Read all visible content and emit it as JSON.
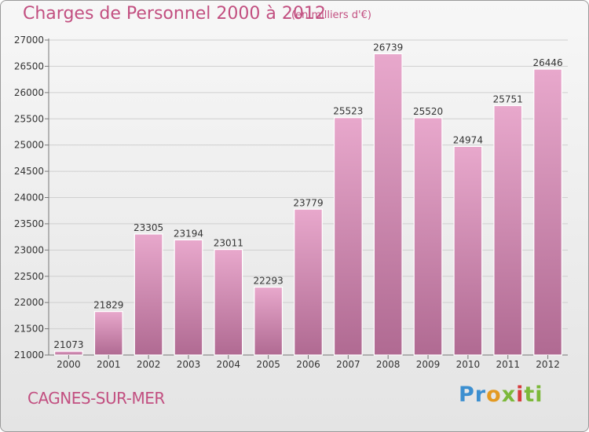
{
  "header": {
    "title": "Charges de Personnel 2000 à 2012",
    "subtitle": "(en milliers d'€)"
  },
  "footer": {
    "city": "CAGNES-SUR-MER",
    "logo_letters": [
      "P",
      "r",
      "o",
      "x",
      "i",
      "ti"
    ]
  },
  "colors": {
    "title": "#c24f80",
    "bar_top": "#e8a8cc",
    "bar_bottom": "#b06a92",
    "background": "#ececec",
    "grid": "#cfcfcf"
  },
  "chart_data": {
    "type": "bar",
    "title": "Charges de Personnel 2000 à 2012",
    "subtitle": "(en milliers d'€)",
    "xlabel": "",
    "ylabel": "",
    "categories": [
      "2000",
      "2001",
      "2002",
      "2003",
      "2004",
      "2005",
      "2006",
      "2007",
      "2008",
      "2009",
      "2010",
      "2011",
      "2012"
    ],
    "values": [
      21073,
      21829,
      23305,
      23194,
      23011,
      22293,
      23779,
      25523,
      26739,
      25520,
      24974,
      25751,
      26446
    ],
    "ylim": [
      21000,
      27000
    ],
    "yticks": [
      21000,
      21500,
      22000,
      22500,
      23000,
      23500,
      24000,
      24500,
      25000,
      25500,
      26000,
      26500,
      27000
    ],
    "grid": true,
    "legend": "none"
  }
}
